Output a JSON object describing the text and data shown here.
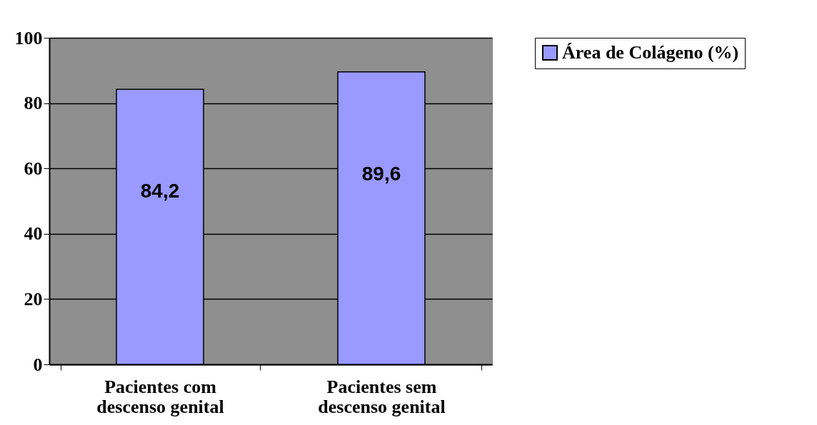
{
  "chart_data": {
    "type": "bar",
    "categories": [
      "Pacientes com descenso genital",
      "Pacientes sem descenso genital"
    ],
    "series": [
      {
        "name": "Área de Colágeno (%)",
        "color": "#9999ff",
        "values": [
          84.2,
          89.6
        ],
        "value_labels": [
          "84,2",
          "89,6"
        ]
      }
    ],
    "ylim": [
      0,
      100
    ],
    "yticks": [
      0,
      20,
      40,
      60,
      80,
      100
    ],
    "grid": "y",
    "legend": "right"
  }
}
